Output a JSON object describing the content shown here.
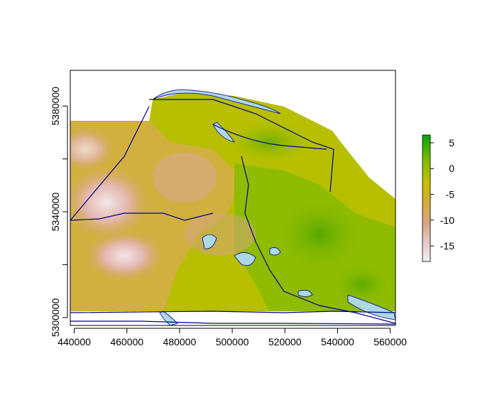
{
  "map": {
    "x_ticks": [
      "440000",
      "460000",
      "480000",
      "500000",
      "520000",
      "540000",
      "560000"
    ],
    "y_ticks": [
      "5300000",
      "5340000",
      "5380000"
    ],
    "x_range": [
      438500,
      562000
    ],
    "y_range": [
      5297000,
      5393500
    ]
  },
  "legend": {
    "ticks": [
      "5",
      "0",
      "-5",
      "-10",
      "-15"
    ],
    "values": [
      5,
      0,
      -5,
      -10,
      -15
    ],
    "range": [
      -18,
      6.5
    ],
    "colors": [
      "#f2f2f2",
      "#e6c8c8",
      "#d9a488",
      "#d4ad32",
      "#c3c000",
      "#7fbb00",
      "#00a600"
    ]
  },
  "colors": {
    "water_fill": "#add8e6",
    "boundary_lines": "#00008b",
    "raster_low": "#e6c0b8",
    "raster_mid": "#c9bd00",
    "raster_high": "#5aa800"
  }
}
